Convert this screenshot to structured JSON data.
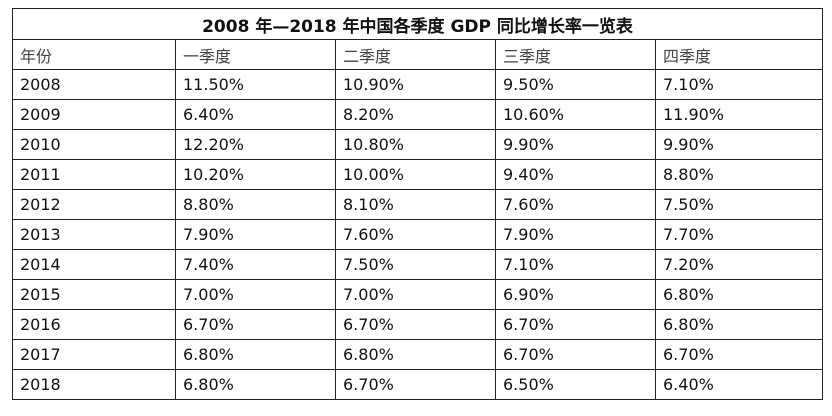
{
  "table": {
    "title": "2008 年—2018 年中国各季度 GDP 同比增长率一览表",
    "header": [
      "年份",
      "一季度",
      "二季度",
      "三季度",
      "四季度"
    ],
    "rows": [
      [
        "2008",
        "11.50%",
        "10.90%",
        "9.50%",
        "7.10%"
      ],
      [
        "2009",
        "6.40%",
        "8.20%",
        "10.60%",
        "11.90%"
      ],
      [
        "2010",
        "12.20%",
        "10.80%",
        "9.90%",
        "9.90%"
      ],
      [
        "2011",
        "10.20%",
        "10.00%",
        "9.40%",
        "8.80%"
      ],
      [
        "2012",
        "8.80%",
        "8.10%",
        "7.60%",
        "7.50%"
      ],
      [
        "2013",
        "7.90%",
        "7.60%",
        "7.90%",
        "7.70%"
      ],
      [
        "2014",
        "7.40%",
        "7.50%",
        "7.10%",
        "7.20%"
      ],
      [
        "2015",
        "7.00%",
        "7.00%",
        "6.90%",
        "6.80%"
      ],
      [
        "2016",
        "6.70%",
        "6.70%",
        "6.70%",
        "6.80%"
      ],
      [
        "2017",
        "6.80%",
        "6.80%",
        "6.70%",
        "6.70%"
      ],
      [
        "2018",
        "6.80%",
        "6.70%",
        "6.50%",
        "6.40%"
      ]
    ]
  }
}
